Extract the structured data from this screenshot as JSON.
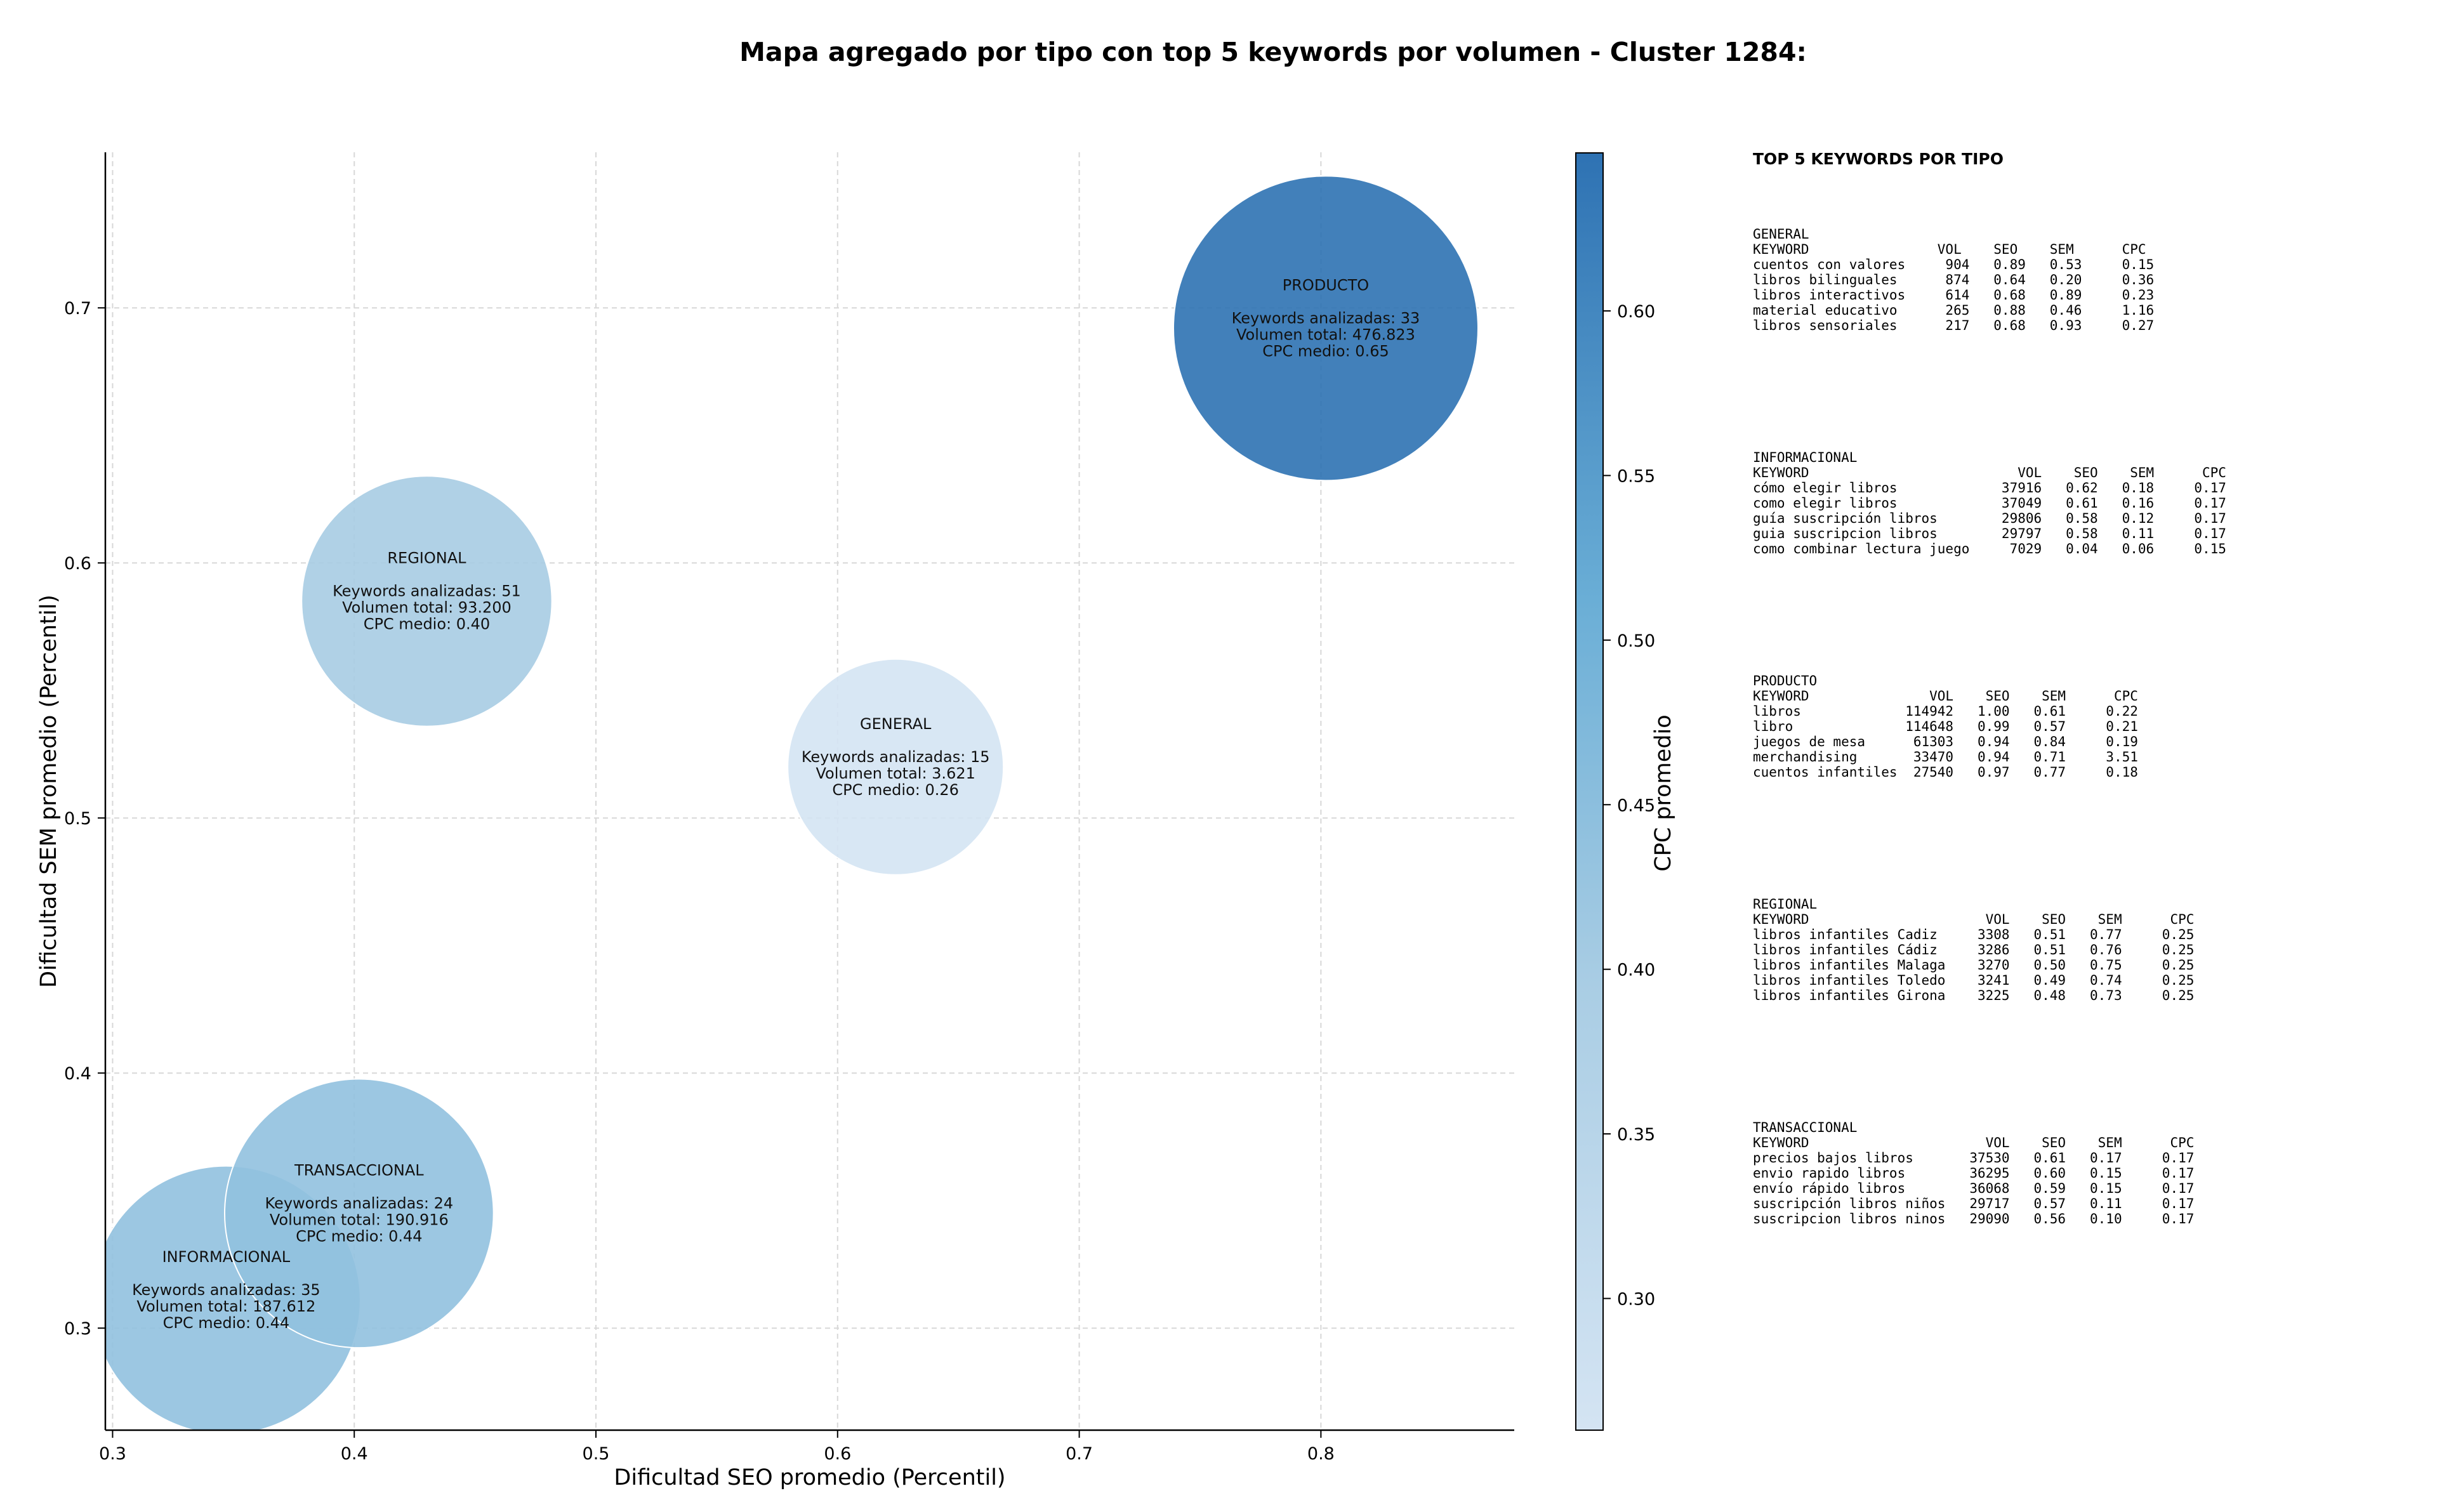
{
  "chart_data": {
    "type": "scatter",
    "title": "Mapa agregado por tipo con top 5 keywords por volumen - Cluster 1284:",
    "xlabel": "Dificultad SEO promedio (Percentil)",
    "ylabel": "Dificultad SEM promedio (Percentil)",
    "xlim": [
      0.297,
      0.88
    ],
    "ylim": [
      0.26,
      0.761
    ],
    "xticks": [
      "0.3",
      "0.4",
      "0.5",
      "0.6",
      "0.7",
      "0.8"
    ],
    "yticks": [
      "0.3",
      "0.4",
      "0.5",
      "0.6",
      "0.7"
    ],
    "grid": true,
    "colorbar": {
      "label": "CPC promedio",
      "min": 0.26,
      "max": 0.648,
      "ticks": [
        "0.30",
        "0.35",
        "0.40",
        "0.45",
        "0.50",
        "0.55",
        "0.60"
      ],
      "color_low": "#cfe1f1",
      "color_high": "#2e72b3"
    },
    "bubbles": [
      {
        "label": "INFORMACIONAL",
        "x": 0.347,
        "y": 0.311,
        "keywords_line": "Keywords analizadas: 35",
        "volume_line": "Volumen total: 187.612",
        "cpc_line": "CPC medio: 0.44",
        "cpc": 0.44,
        "volume": 187612
      },
      {
        "label": "TRANSACCIONAL",
        "x": 0.402,
        "y": 0.345,
        "keywords_line": "Keywords analizadas: 24",
        "volume_line": "Volumen total: 190.916",
        "cpc_line": "CPC medio: 0.44",
        "cpc": 0.44,
        "volume": 190916
      },
      {
        "label": "REGIONAL",
        "x": 0.43,
        "y": 0.585,
        "keywords_line": "Keywords analizadas: 51",
        "volume_line": "Volumen total: 93.200",
        "cpc_line": "CPC medio: 0.40",
        "cpc": 0.4,
        "volume": 93200
      },
      {
        "label": "GENERAL",
        "x": 0.624,
        "y": 0.52,
        "keywords_line": "Keywords analizadas: 15",
        "volume_line": "Volumen total: 3.621",
        "cpc_line": "CPC medio: 0.26",
        "cpc": 0.26,
        "volume": 3621
      },
      {
        "label": "PRODUCTO",
        "x": 0.802,
        "y": 0.692,
        "keywords_line": "Keywords analizadas: 33",
        "volume_line": "Volumen total: 476.823",
        "cpc_line": "CPC medio: 0.65",
        "cpc": 0.65,
        "volume": 476823
      }
    ]
  },
  "panel": {
    "title": "TOP 5 KEYWORDS POR TIPO",
    "groups": [
      {
        "name": "GENERAL",
        "lines": [
          "KEYWORD                VOL    SEO    SEM      CPC",
          "cuentos con valores     904   0.89   0.53     0.15",
          "libros bilinguales      874   0.64   0.20     0.36",
          "libros interactivos     614   0.68   0.89     0.23",
          "material educativo      265   0.88   0.46     1.16",
          "libros sensoriales      217   0.68   0.93     0.27"
        ]
      },
      {
        "name": "INFORMACIONAL",
        "lines": [
          "KEYWORD                          VOL    SEO    SEM      CPC",
          "cómo elegir libros             37916   0.62   0.18     0.17",
          "como elegir libros             37049   0.61   0.16     0.17",
          "guía suscripción libros        29806   0.58   0.12     0.17",
          "guia suscripcion libros        29797   0.58   0.11     0.17",
          "como combinar lectura juego     7029   0.04   0.06     0.15"
        ]
      },
      {
        "name": "PRODUCTO",
        "lines": [
          "KEYWORD               VOL    SEO    SEM      CPC",
          "libros             114942   1.00   0.61     0.22",
          "libro              114648   0.99   0.57     0.21",
          "juegos de mesa      61303   0.94   0.84     0.19",
          "merchandising       33470   0.94   0.71     3.51",
          "cuentos infantiles  27540   0.97   0.77     0.18"
        ]
      },
      {
        "name": "REGIONAL",
        "lines": [
          "KEYWORD                      VOL    SEO    SEM      CPC",
          "libros infantiles Cadiz     3308   0.51   0.77     0.25",
          "libros infantiles Cádiz     3286   0.51   0.76     0.25",
          "libros infantiles Malaga    3270   0.50   0.75     0.25",
          "libros infantiles Toledo    3241   0.49   0.74     0.25",
          "libros infantiles Girona    3225   0.48   0.73     0.25"
        ]
      },
      {
        "name": "TRANSACCIONAL",
        "lines": [
          "KEYWORD                      VOL    SEO    SEM      CPC",
          "precios bajos libros       37530   0.61   0.17     0.17",
          "envio rapido libros        36295   0.60   0.15     0.17",
          "envío rápido libros        36068   0.59   0.15     0.17",
          "suscripción libros niños   29717   0.57   0.11     0.17",
          "suscripcion libros ninos   29090   0.56   0.10     0.17"
        ]
      }
    ]
  }
}
